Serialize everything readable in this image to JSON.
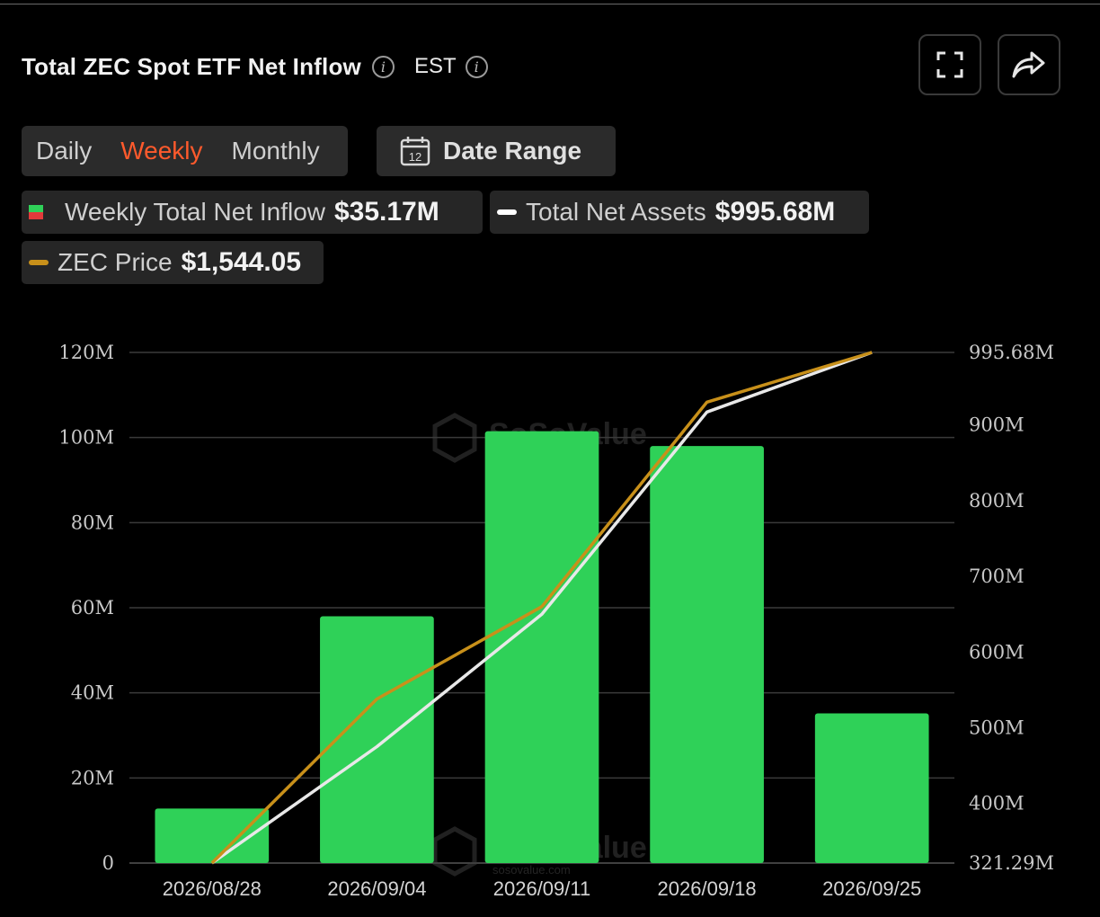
{
  "header": {
    "title": "Total ZEC Spot ETF Net Inflow",
    "timezone": "EST"
  },
  "period_tabs": {
    "items": [
      "Daily",
      "Weekly",
      "Monthly"
    ],
    "active": "Weekly"
  },
  "date_range": {
    "label": "Date Range",
    "calendar_day": "12"
  },
  "legend": [
    {
      "name": "Weekly Total Net Inflow",
      "value": "$35.17M"
    },
    {
      "name": "Total Net Assets",
      "value": "$995.68M"
    },
    {
      "name": "ZEC Price",
      "value": "$1,544.05"
    }
  ],
  "watermark": {
    "brand": "SoSoValue",
    "url": "sosovalue.com"
  },
  "colors": {
    "bar": "#2fd158",
    "bar_negative": "#e23b3b",
    "assets_line": "#e8e8e8",
    "price_line": "#c8901a",
    "active_tab": "#ff5a2c",
    "grid": "#3a3a3a"
  },
  "icons": {
    "fullscreen": "fullscreen-icon",
    "share": "share-icon",
    "calendar": "calendar-icon",
    "info": "info-icon"
  },
  "chart_data": {
    "type": "bar",
    "categories": [
      "2026/08/28",
      "2026/09/04",
      "2026/09/11",
      "2026/09/18",
      "2026/09/25"
    ],
    "series": [
      {
        "name": "Weekly Total Net Inflow",
        "type": "bar",
        "axis": "left",
        "values": [
          12.8,
          58,
          101.5,
          98,
          35.17
        ]
      },
      {
        "name": "Total Net Assets",
        "type": "line",
        "axis": "right",
        "values": [
          321.29,
          475,
          650,
          917,
          995.68
        ]
      },
      {
        "name": "ZEC Price",
        "type": "line",
        "axis": "right_scaled",
        "values": [
          321.29,
          538,
          660,
          930,
          995.68
        ]
      }
    ],
    "y_left": {
      "min": 0,
      "max": 120,
      "ticks": [
        "0",
        "20M",
        "40M",
        "60M",
        "80M",
        "100M",
        "120M"
      ]
    },
    "y_right": {
      "min": 321.29,
      "max": 995.68,
      "ticks": [
        "321.29M",
        "400M",
        "500M",
        "600M",
        "700M",
        "800M",
        "900M",
        "995.68M"
      ]
    },
    "grid": true,
    "legend_position": "top-left"
  }
}
